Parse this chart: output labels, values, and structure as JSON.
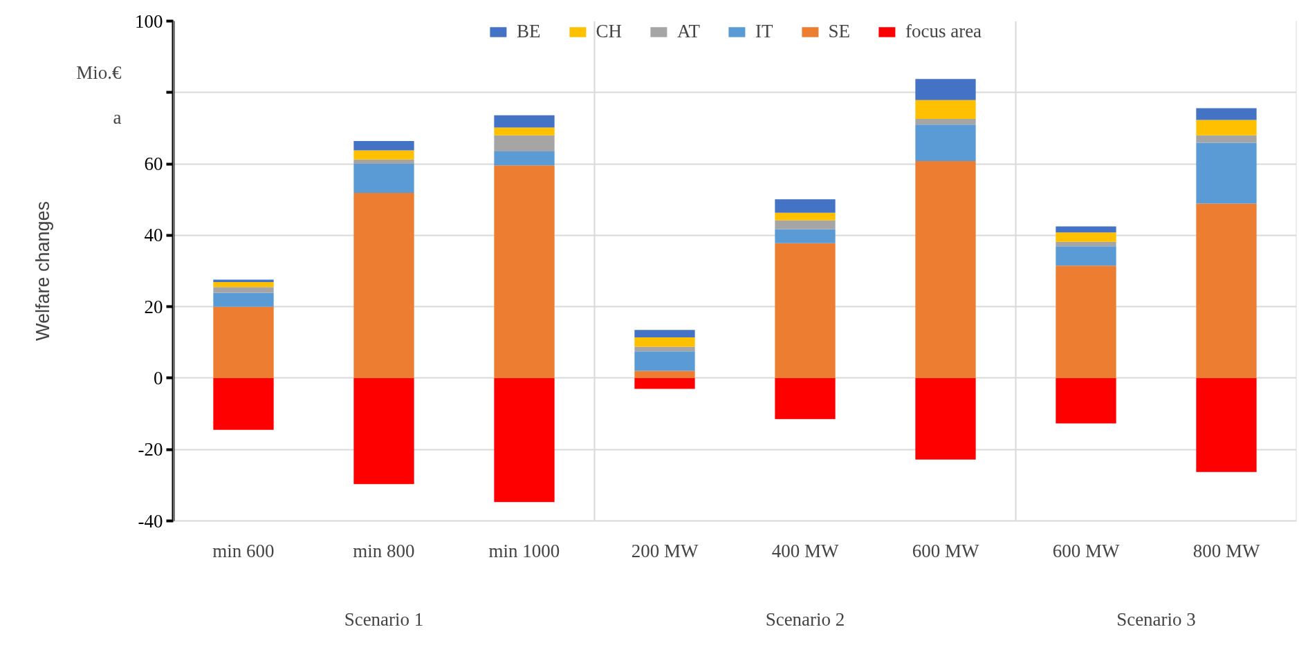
{
  "chart_data": {
    "type": "bar",
    "stacked": true,
    "ylabel": "Welfare changes",
    "categories": [
      "min 600",
      "min 800",
      "min 1000",
      "200 MW",
      "400 MW",
      "600 MW",
      "600 MW",
      "800 MW"
    ],
    "series": [
      {
        "name": "focus area",
        "color": "#ff0000",
        "values": [
          -14.5,
          -29.7,
          -34.7,
          -3.0,
          -11.5,
          -22.8,
          -12.7,
          -26.3
        ]
      },
      {
        "name": "SE",
        "color": "#ed7d31",
        "values": [
          20.0,
          51.9,
          59.6,
          2.0,
          37.8,
          60.8,
          31.5,
          48.9
        ]
      },
      {
        "name": "IT",
        "color": "#5b9bd5",
        "values": [
          3.9,
          8.1,
          3.9,
          5.5,
          3.9,
          10.2,
          5.4,
          17.0
        ]
      },
      {
        "name": "AT",
        "color": "#a5a5a5",
        "values": [
          1.6,
          1.2,
          4.5,
          1.3,
          2.5,
          1.6,
          1.3,
          2.1
        ]
      },
      {
        "name": "CH",
        "color": "#ffc000",
        "values": [
          1.4,
          2.6,
          2.2,
          2.6,
          2.1,
          5.3,
          2.6,
          4.3
        ]
      },
      {
        "name": "BE",
        "color": "#4472c4",
        "values": [
          0.7,
          2.6,
          3.4,
          2.1,
          3.8,
          5.9,
          1.7,
          3.3
        ]
      }
    ],
    "ylim": [
      -40,
      100
    ],
    "yticks": [
      -40,
      -20,
      0,
      20,
      40,
      60,
      {
        "value": 80,
        "label": null
      },
      100
    ],
    "grid": "y",
    "legend": "top",
    "annotations": [
      "Mio.€",
      "a",
      "Scenario 1",
      "Scenario 2",
      "Scenario 3"
    ]
  }
}
